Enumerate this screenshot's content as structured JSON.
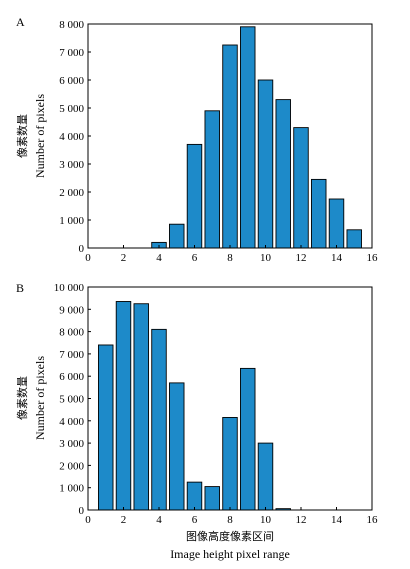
{
  "chart_data": [
    {
      "panel": "A",
      "type": "bar",
      "x": [
        4,
        5,
        6,
        7,
        8,
        9,
        10,
        11,
        12,
        13,
        14,
        15
      ],
      "values": [
        200,
        850,
        3700,
        4900,
        7250,
        7900,
        6000,
        5300,
        4300,
        2450,
        1750,
        650
      ],
      "xlim": [
        0,
        16
      ],
      "ylim": [
        0,
        8000
      ],
      "xticks": [
        "0",
        "2",
        "4",
        "6",
        "8",
        "10",
        "12",
        "14",
        "16"
      ],
      "yticks": [
        "0",
        "1 000",
        "2 000",
        "3 000",
        "4 000",
        "5 000",
        "6 000",
        "7 000",
        "8 000"
      ],
      "ylabel_cn": "像素数量",
      "ylabel_en": "Number of pixels",
      "bar_color": "#1d8ac9"
    },
    {
      "panel": "B",
      "type": "bar",
      "x": [
        1,
        2,
        3,
        4,
        5,
        6,
        7,
        8,
        9,
        10,
        11
      ],
      "values": [
        7400,
        9350,
        9250,
        8100,
        5700,
        1250,
        1050,
        4150,
        6350,
        3000,
        60
      ],
      "xlim": [
        0,
        16
      ],
      "ylim": [
        0,
        10000
      ],
      "xticks": [
        "0",
        "2",
        "4",
        "6",
        "8",
        "10",
        "12",
        "14",
        "16"
      ],
      "yticks": [
        "0",
        "1 000",
        "2 000",
        "3 000",
        "4 000",
        "5 000",
        "6 000",
        "7 000",
        "8 000",
        "9 000",
        "10 000"
      ],
      "ylabel_cn": "像素数量",
      "ylabel_en": "Number of pixels",
      "xlabel_cn": "图像高度像素区间",
      "xlabel_en": "Image height pixel range",
      "bar_color": "#1d8ac9"
    }
  ]
}
